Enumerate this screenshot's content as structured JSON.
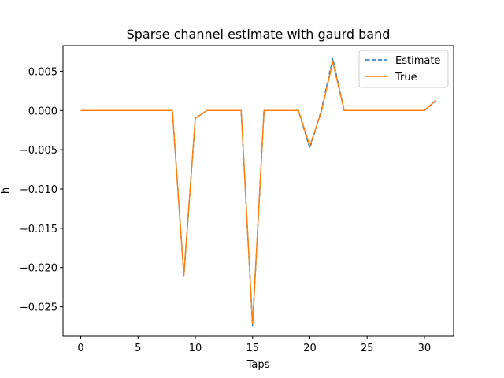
{
  "chart_data": {
    "type": "line",
    "title": "Sparse channel estimate with gaurd band",
    "xlabel": "Taps",
    "ylabel": "h",
    "xlim": [
      -1.55,
      32.55
    ],
    "ylim": [
      -0.02875,
      0.00825
    ],
    "xticks": [
      0,
      5,
      10,
      15,
      20,
      25,
      30
    ],
    "xtick_labels": [
      "0",
      "5",
      "10",
      "15",
      "20",
      "25",
      "30"
    ],
    "yticks": [
      0.005,
      0.0,
      -0.005,
      -0.01,
      -0.015,
      -0.02,
      -0.025
    ],
    "ytick_labels": [
      "0.005",
      "0.000",
      "−0.005",
      "−0.010",
      "−0.015",
      "−0.020",
      "−0.025"
    ],
    "grid": false,
    "legend": "top-right",
    "x": [
      0,
      1,
      2,
      3,
      4,
      5,
      6,
      7,
      8,
      9,
      10,
      11,
      12,
      13,
      14,
      15,
      16,
      17,
      18,
      19,
      20,
      21,
      22,
      23,
      24,
      25,
      26,
      27,
      28,
      29,
      30,
      31
    ],
    "series": [
      {
        "name": "Estimate",
        "color": "#1f77b4",
        "style": "dashed",
        "values": [
          0,
          0,
          0,
          0,
          0,
          0,
          0,
          0,
          0,
          -0.0211,
          -0.001,
          0,
          0,
          0,
          0,
          -0.0274,
          0,
          0,
          0,
          0,
          -0.0048,
          0,
          0.0066,
          0,
          0,
          0,
          0,
          0,
          0,
          0,
          0,
          0.0012
        ]
      },
      {
        "name": "True",
        "color": "#ff7f0e",
        "style": "solid",
        "values": [
          0,
          0,
          0,
          0,
          0,
          0,
          0,
          0,
          0,
          -0.021,
          -0.001,
          0,
          0,
          0,
          0,
          -0.0272,
          0,
          0,
          0,
          0,
          -0.0045,
          -0.0002,
          0.0062,
          0,
          0,
          0,
          0,
          0,
          0,
          0,
          0,
          0.0013
        ]
      }
    ]
  }
}
